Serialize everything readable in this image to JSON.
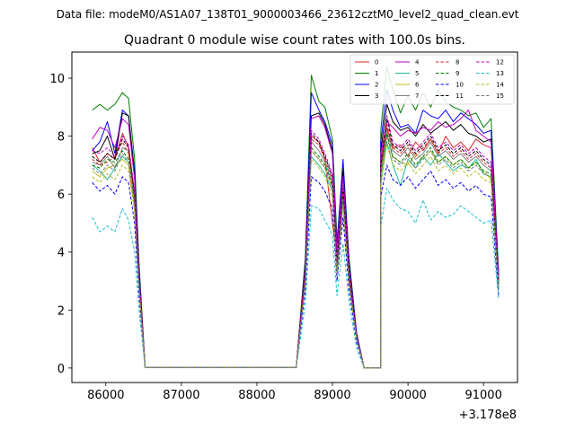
{
  "chart_data": {
    "type": "line",
    "suptitle": "Data file: modeM0/AS1A07_138T01_9000003466_23612cztM0_level2_quad_clean.evt",
    "title": "Quadrant 0 module wise count rates with 100.0s bins.",
    "xlabel": "",
    "ylabel": "",
    "x_offset_label": "+3.178e8",
    "xlim": [
      85550,
      91450
    ],
    "ylim": [
      -0.5,
      10.9
    ],
    "xticks": [
      86000,
      87000,
      88000,
      89000,
      90000,
      91000
    ],
    "xtick_labels": [
      "86000",
      "87000",
      "88000",
      "89000",
      "90000",
      "91000"
    ],
    "yticks": [
      0,
      2,
      4,
      6,
      8,
      10
    ],
    "ytick_labels": [
      "0",
      "2",
      "4",
      "6",
      "8",
      "10"
    ],
    "grid": false,
    "legend_position": "top-right",
    "segment_times": {
      "seg1": [
        85820,
        85920,
        86020,
        86120,
        86220,
        86300,
        86380,
        86440,
        86520
      ],
      "zero": [
        86520,
        88520
      ],
      "seg2": [
        88520,
        88640,
        88720,
        88820,
        88900,
        89000,
        89060,
        89140,
        89220,
        89320,
        89420,
        89640
      ],
      "seg3": [
        89640,
        89720,
        89800,
        89900,
        90000,
        90100,
        90200,
        90300,
        90400,
        90500,
        90600,
        90700,
        90800,
        90900,
        91000,
        91100,
        91200
      ]
    },
    "series": [
      {
        "name": "0",
        "color": "#d62728",
        "dashed": false,
        "seg1": [
          7.6,
          7.1,
          7.4,
          7.2,
          8.1,
          7.6,
          6.0,
          3.0,
          0.02
        ],
        "seg2": [
          0.02,
          3.0,
          8.0,
          7.8,
          7.2,
          5.0,
          3.9,
          6.2,
          3.3,
          1.1,
          0.0,
          0.0
        ],
        "seg3": [
          7.0,
          8.3,
          7.6,
          7.7,
          7.3,
          7.8,
          7.5,
          7.9,
          7.4,
          8.0,
          7.6,
          7.8,
          7.5,
          7.9,
          7.7,
          7.6,
          3.0
        ]
      },
      {
        "name": "1",
        "color": "#008000",
        "dashed": false,
        "seg1": [
          8.9,
          9.1,
          8.9,
          9.1,
          9.5,
          9.3,
          7.2,
          3.6,
          0.02
        ],
        "seg2": [
          0.02,
          3.8,
          10.1,
          9.2,
          9.0,
          7.9,
          4.4,
          6.9,
          3.8,
          1.2,
          0.0,
          0.0
        ],
        "seg3": [
          8.2,
          10.4,
          9.6,
          8.8,
          9.4,
          8.9,
          9.5,
          9.0,
          9.6,
          9.2,
          9.0,
          8.9,
          8.7,
          8.8,
          8.3,
          8.6,
          3.3
        ]
      },
      {
        "name": "2",
        "color": "#0000ff",
        "dashed": false,
        "seg1": [
          7.5,
          7.8,
          8.5,
          7.4,
          8.9,
          8.7,
          6.8,
          3.4,
          0.02
        ],
        "seg2": [
          0.02,
          3.6,
          9.5,
          8.9,
          8.5,
          7.7,
          4.2,
          7.2,
          3.7,
          1.2,
          0.0,
          0.0
        ],
        "seg3": [
          7.8,
          9.6,
          8.9,
          8.3,
          8.4,
          8.1,
          8.9,
          8.7,
          8.6,
          8.9,
          8.5,
          8.8,
          8.6,
          8.4,
          8.1,
          8.2,
          3.2
        ]
      },
      {
        "name": "3",
        "color": "#000000",
        "dashed": false,
        "seg1": [
          7.4,
          7.5,
          8.0,
          7.2,
          8.8,
          8.7,
          6.6,
          3.3,
          0.02
        ],
        "seg2": [
          0.02,
          3.5,
          8.7,
          8.8,
          8.4,
          7.5,
          4.0,
          6.8,
          3.6,
          1.1,
          0.0,
          0.0
        ],
        "seg3": [
          7.5,
          9.1,
          8.5,
          8.2,
          8.3,
          8.0,
          8.4,
          8.1,
          8.3,
          8.5,
          8.2,
          8.4,
          8.1,
          8.0,
          7.8,
          7.9,
          3.0
        ]
      },
      {
        "name": "4",
        "color": "#bf00bf",
        "dashed": false,
        "seg1": [
          7.9,
          8.3,
          8.2,
          7.6,
          8.6,
          8.4,
          6.5,
          3.2,
          0.02
        ],
        "seg2": [
          0.02,
          3.4,
          8.6,
          8.7,
          8.3,
          7.4,
          4.0,
          6.6,
          3.5,
          1.1,
          0.0,
          0.0
        ],
        "seg3": [
          7.4,
          8.5,
          8.3,
          8.0,
          8.2,
          8.1,
          8.3,
          8.2,
          8.5,
          8.3,
          8.4,
          8.6,
          8.9,
          8.2,
          8.0,
          7.8,
          3.1
        ]
      },
      {
        "name": "5",
        "color": "#1abc9c",
        "dashed": false,
        "seg1": [
          7.0,
          6.8,
          6.5,
          6.9,
          7.3,
          7.1,
          5.6,
          2.8,
          0.02
        ],
        "seg2": [
          0.02,
          3.0,
          7.3,
          7.0,
          6.7,
          6.1,
          3.2,
          5.7,
          3.0,
          1.0,
          0.0,
          0.0
        ],
        "seg3": [
          6.3,
          7.8,
          7.0,
          6.3,
          7.2,
          6.9,
          7.3,
          7.0,
          7.4,
          7.1,
          6.8,
          7.0,
          6.9,
          7.2,
          6.7,
          6.6,
          2.7
        ]
      },
      {
        "name": "6",
        "color": "#bcbd22",
        "dashed": false,
        "seg1": [
          6.8,
          6.6,
          6.9,
          7.0,
          7.2,
          7.0,
          5.5,
          2.8,
          0.02
        ],
        "seg2": [
          0.02,
          3.0,
          7.5,
          7.2,
          6.9,
          6.2,
          3.3,
          5.8,
          3.0,
          1.0,
          0.0,
          0.0
        ],
        "seg3": [
          6.6,
          8.0,
          7.3,
          7.1,
          7.0,
          7.4,
          7.2,
          7.5,
          7.1,
          7.3,
          7.0,
          7.2,
          6.9,
          7.1,
          6.8,
          6.5,
          2.8
        ]
      },
      {
        "name": "7",
        "color": "#7f7f7f",
        "dashed": false,
        "seg1": [
          7.1,
          7.0,
          7.3,
          6.9,
          7.6,
          7.5,
          5.8,
          2.9,
          0.02
        ],
        "seg2": [
          0.02,
          3.1,
          7.8,
          7.5,
          7.1,
          6.4,
          3.4,
          6.0,
          3.1,
          1.0,
          0.0,
          0.0
        ],
        "seg3": [
          6.8,
          8.2,
          7.5,
          7.3,
          7.6,
          7.2,
          7.4,
          7.8,
          7.3,
          7.5,
          7.2,
          7.4,
          7.1,
          7.3,
          7.0,
          6.8,
          2.9
        ]
      },
      {
        "name": "8",
        "color": "#d62728",
        "dashed": true,
        "seg1": [
          7.2,
          7.0,
          7.1,
          7.3,
          7.8,
          7.4,
          5.9,
          2.9,
          0.02
        ],
        "seg2": [
          0.02,
          3.2,
          7.9,
          7.7,
          7.2,
          6.5,
          3.5,
          6.1,
          3.2,
          1.0,
          0.0,
          0.0
        ],
        "seg3": [
          6.9,
          8.4,
          7.6,
          7.4,
          7.7,
          7.3,
          7.6,
          7.9,
          7.4,
          7.6,
          7.3,
          7.5,
          7.2,
          7.4,
          7.1,
          6.9,
          3.0
        ]
      },
      {
        "name": "9",
        "color": "#008000",
        "dashed": true,
        "seg1": [
          7.0,
          6.9,
          7.2,
          7.1,
          7.5,
          7.2,
          5.7,
          2.9,
          0.02
        ],
        "seg2": [
          0.02,
          3.1,
          7.6,
          7.3,
          7.0,
          6.3,
          3.3,
          5.9,
          3.1,
          1.0,
          0.0,
          0.0
        ],
        "seg3": [
          6.7,
          8.1,
          7.3,
          7.1,
          7.4,
          7.0,
          7.3,
          7.6,
          7.1,
          7.3,
          7.0,
          7.2,
          6.9,
          7.1,
          6.8,
          6.7,
          2.9
        ]
      },
      {
        "name": "10",
        "color": "#0000ff",
        "dashed": true,
        "seg1": [
          6.4,
          6.1,
          6.3,
          6.0,
          6.6,
          6.4,
          5.0,
          2.5,
          0.02
        ],
        "seg2": [
          0.02,
          2.7,
          6.6,
          6.4,
          6.1,
          5.5,
          3.0,
          5.2,
          2.7,
          0.9,
          0.0,
          0.0
        ],
        "seg3": [
          5.9,
          7.0,
          6.5,
          6.3,
          6.6,
          6.2,
          6.5,
          6.8,
          6.3,
          6.5,
          6.2,
          6.4,
          6.1,
          6.3,
          6.0,
          5.9,
          2.5
        ]
      },
      {
        "name": "11",
        "color": "#000000",
        "dashed": true,
        "seg1": [
          7.3,
          7.1,
          7.4,
          7.2,
          7.9,
          7.6,
          6.0,
          3.0,
          0.02
        ],
        "seg2": [
          0.02,
          3.3,
          8.1,
          7.8,
          7.3,
          6.6,
          3.6,
          6.2,
          3.3,
          1.1,
          0.0,
          0.0
        ],
        "seg3": [
          7.0,
          8.6,
          7.7,
          7.5,
          7.8,
          7.4,
          7.7,
          8.0,
          7.5,
          7.7,
          7.4,
          7.6,
          7.3,
          7.5,
          7.2,
          7.0,
          3.0
        ]
      },
      {
        "name": "12",
        "color": "#bf00bf",
        "dashed": true,
        "seg1": [
          7.5,
          7.4,
          7.6,
          7.3,
          8.0,
          7.7,
          6.1,
          3.0,
          0.02
        ],
        "seg2": [
          0.02,
          3.3,
          8.2,
          7.9,
          7.4,
          6.7,
          3.6,
          6.3,
          3.3,
          1.1,
          0.0,
          0.0
        ],
        "seg3": [
          7.1,
          8.7,
          7.8,
          7.6,
          7.9,
          7.5,
          7.8,
          8.1,
          7.6,
          7.8,
          7.5,
          7.7,
          7.4,
          7.6,
          7.3,
          7.1,
          3.1
        ]
      },
      {
        "name": "13",
        "color": "#17becf",
        "dashed": true,
        "seg1": [
          5.2,
          4.7,
          4.9,
          4.7,
          5.5,
          5.1,
          4.0,
          2.0,
          0.02
        ],
        "seg2": [
          0.02,
          2.2,
          5.6,
          5.5,
          5.1,
          4.6,
          2.5,
          4.3,
          2.3,
          0.7,
          0.0,
          0.0
        ],
        "seg3": [
          4.9,
          6.2,
          5.8,
          5.5,
          5.4,
          5.0,
          5.8,
          5.1,
          5.4,
          5.2,
          5.3,
          5.6,
          5.4,
          5.2,
          5.0,
          5.1,
          2.4
        ]
      },
      {
        "name": "14",
        "color": "#bcbd22",
        "dashed": true,
        "seg1": [
          6.6,
          6.4,
          6.7,
          6.5,
          7.0,
          6.8,
          5.4,
          2.7,
          0.02
        ],
        "seg2": [
          0.02,
          2.9,
          7.2,
          6.9,
          6.6,
          5.9,
          3.2,
          5.6,
          2.9,
          1.0,
          0.0,
          0.0
        ],
        "seg3": [
          6.4,
          7.7,
          7.0,
          6.8,
          7.1,
          6.7,
          7.0,
          7.3,
          6.8,
          7.0,
          6.7,
          6.9,
          6.6,
          6.8,
          6.5,
          6.4,
          2.7
        ]
      },
      {
        "name": "15",
        "color": "#7f7f7f",
        "dashed": true,
        "seg1": [
          6.9,
          6.7,
          7.0,
          6.8,
          7.4,
          7.1,
          5.6,
          2.8,
          0.02
        ],
        "seg2": [
          0.02,
          3.0,
          7.5,
          7.2,
          6.9,
          6.2,
          3.3,
          5.8,
          3.0,
          1.0,
          0.0,
          0.0
        ],
        "seg3": [
          6.6,
          8.0,
          7.2,
          7.0,
          7.3,
          6.9,
          7.2,
          7.5,
          7.0,
          7.2,
          6.9,
          7.1,
          6.8,
          7.0,
          6.7,
          6.6,
          2.8
        ]
      }
    ]
  }
}
